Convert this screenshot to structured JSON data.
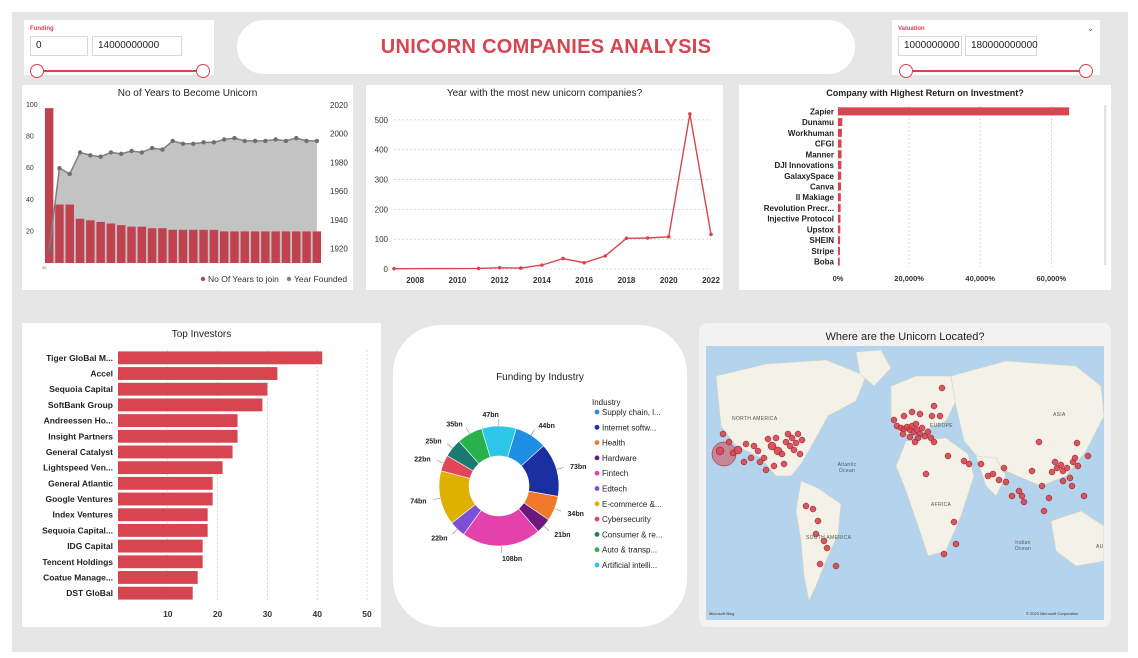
{
  "header": {
    "title": "UNICORN COMPANIES ANALYSIS"
  },
  "funding_slicer": {
    "title": "Funding",
    "min": "0",
    "max": "14000000000"
  },
  "valuation_slicer": {
    "title": "Valuation",
    "min": "1000000000",
    "max": "180000000000"
  },
  "map": {
    "title": "Where are the Unicorn Located?",
    "labels": {
      "north_america": "NORTH AMERICA",
      "south_america": "SOUTH AMERICA",
      "europe": "EUROPE",
      "africa": "AFRICA",
      "asia": "ASIA",
      "atlantic": "Atlantic Ocean",
      "indian": "Indian Ocean",
      "au": "AU"
    },
    "provider": "Microsoft Bing",
    "copyright": "© 2023 Microsoft Corporation",
    "marker_color": "#d64550"
  },
  "chart_data": [
    {
      "id": "years_to_unicorn",
      "type": "bar+area",
      "title": "No of Years to Become Unicorn",
      "left_axis": {
        "range": [
          0,
          100
        ],
        "ticks": [
          "20",
          "40",
          "60",
          "80",
          "100"
        ]
      },
      "right_axis": {
        "range": [
          1910,
          2020
        ],
        "ticks": [
          "1920",
          "1940",
          "1960",
          "1980",
          "2000",
          "2020"
        ]
      },
      "bars": {
        "name": "No Of Years to join",
        "color": "#c0424e",
        "values": [
          98,
          37,
          37,
          28,
          27,
          26,
          25,
          24,
          23,
          23,
          22,
          22,
          21,
          21,
          21,
          21,
          21,
          20,
          20,
          20,
          20,
          20,
          20,
          20,
          20,
          20,
          20
        ]
      },
      "line": {
        "name": "Year Founded",
        "color": "#808080",
        "values": [
          1919,
          1976,
          1972,
          1987,
          1985,
          1984,
          1987,
          1986,
          1988,
          1987,
          1990,
          1989,
          1995,
          1993,
          1993,
          1994,
          1994,
          1996,
          1997,
          1995,
          1995,
          1995,
          1996,
          1995,
          1997,
          1995,
          1995
        ]
      },
      "x_tick": "00",
      "legend_position": "bottom-right"
    },
    {
      "id": "new_unicorns_by_year",
      "type": "line",
      "title": "Year with the most new unicorn companies?",
      "color": "#d64550",
      "x": [
        2007,
        2011,
        2012,
        2013,
        2014,
        2015,
        2016,
        2017,
        2018,
        2019,
        2020,
        2021,
        2022
      ],
      "y": [
        1,
        2,
        4,
        3,
        13,
        35,
        21,
        44,
        103,
        104,
        108,
        520,
        116
      ],
      "xlim": [
        2007,
        2022
      ],
      "ylim": [
        0,
        550
      ],
      "x_ticks": [
        "2008",
        "2010",
        "2012",
        "2014",
        "2016",
        "2018",
        "2020",
        "2022"
      ],
      "y_ticks": [
        "0",
        "100",
        "200",
        "300",
        "400",
        "500"
      ],
      "grid": true
    },
    {
      "id": "roi",
      "type": "bar",
      "orientation": "horizontal",
      "title": "Company with Highest Return on Investment?",
      "color": "#d64550",
      "categories": [
        "Zapier",
        "Dunamu",
        "Workhuman",
        "CFGI",
        "Manner",
        "DJI Innovations",
        "GalaxySpace",
        "Canva",
        "Il Makiage",
        "Revolution Precr...",
        "Injective Protocol",
        "Upstox",
        "SHEIN",
        "Stripe",
        "Boba"
      ],
      "values": [
        65000,
        1200,
        1100,
        1000,
        1000,
        950,
        900,
        850,
        800,
        750,
        700,
        650,
        600,
        550,
        500
      ],
      "xlim": [
        0,
        72000
      ],
      "x_ticks": [
        "0%",
        "20,000%",
        "40,000%",
        "60,000%"
      ],
      "grid": true
    },
    {
      "id": "top_investors",
      "type": "bar",
      "orientation": "horizontal",
      "title": "Top Investors",
      "color": "#d64550",
      "categories": [
        "Tiger GloBal M...",
        "Accel",
        "Sequoia Capital",
        "SoftBank Group",
        "Andreessen Ho...",
        "Insight Partners",
        "General Catalyst",
        "Lightspeed Ven...",
        "General Atlantic",
        "Google Ventures",
        "Index Ventures",
        "Sequoia Capital...",
        "IDG Capital",
        "Tencent Holdings",
        "Coatue Manage...",
        "DST GloBal"
      ],
      "values": [
        41,
        32,
        30,
        29,
        24,
        24,
        23,
        21,
        19,
        19,
        18,
        18,
        17,
        17,
        16,
        15
      ],
      "xlim": [
        0,
        52
      ],
      "x_ticks": [
        "10",
        "20",
        "30",
        "40",
        "50"
      ],
      "grid": true
    },
    {
      "id": "funding_by_industry",
      "type": "pie",
      "variant": "donut",
      "title": "Funding by Industry",
      "legend_title": "Industry",
      "legend_position": "right",
      "slices": [
        {
          "label": "Supply chain, l...",
          "value": 44,
          "display": "44bn",
          "color": "#1f8fe6"
        },
        {
          "label": "Internet softw...",
          "value": 73,
          "display": "73bn",
          "color": "#1a2fa0"
        },
        {
          "label": "Health",
          "value": 34,
          "display": "34bn",
          "color": "#f0782a"
        },
        {
          "label": "Hardware",
          "value": 21,
          "display": "21bn",
          "color": "#6a1a7a"
        },
        {
          "label": "Fintech",
          "value": 108,
          "display": "108bn",
          "color": "#e441ad"
        },
        {
          "label": "Edtech",
          "value": 22,
          "display": "22bn",
          "color": "#7b4fd6"
        },
        {
          "label": "E-commerce &...",
          "value": 74,
          "display": "74bn",
          "color": "#e0b000"
        },
        {
          "label": "Cybersecurity",
          "value": 22,
          "display": "22bn",
          "color": "#e3455a"
        },
        {
          "label": "Consumer & re...",
          "value": 25,
          "display": "25bn",
          "color": "#1a7a72"
        },
        {
          "label": "Auto & transp...",
          "value": 35,
          "display": "35bn",
          "color": "#28b34a"
        },
        {
          "label": "Artificial intelli...",
          "value": 47,
          "display": "47bn",
          "color": "#2ec6e8"
        }
      ]
    }
  ]
}
